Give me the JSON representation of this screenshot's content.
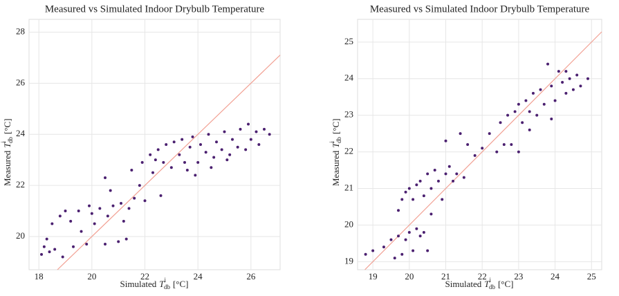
{
  "chart_data": [
    {
      "type": "scatter",
      "title": "Measured vs Simulated Indoor Drybulb Temperature",
      "x_label": [
        "Simulated",
        "T",
        "i",
        "db",
        "[°C]"
      ],
      "y_label": [
        "Measured",
        "T",
        "i",
        "db",
        "[°C]"
      ],
      "xlim": [
        17.63,
        27.1
      ],
      "ylim": [
        18.7,
        28.5
      ],
      "xticks": [
        18,
        20,
        22,
        24,
        26
      ],
      "yticks": [
        20,
        22,
        24,
        26,
        28
      ],
      "grid": true,
      "identity_line_color": "#f2a093",
      "x": [
        18.1,
        18.2,
        18.3,
        18.4,
        18.5,
        18.6,
        18.8,
        18.9,
        19.0,
        19.2,
        19.3,
        19.5,
        19.6,
        19.8,
        19.9,
        20.1,
        20.3,
        20.5,
        20.6,
        20.8,
        21.0,
        21.1,
        21.3,
        21.2,
        20.5,
        20.7,
        21.5,
        21.6,
        21.8,
        21.9,
        22.0,
        22.2,
        22.3,
        22.5,
        22.6,
        22.7,
        22.8,
        23.0,
        23.1,
        23.3,
        23.4,
        23.5,
        23.7,
        23.8,
        24.0,
        24.1,
        24.3,
        24.4,
        24.6,
        24.7,
        24.9,
        25.0,
        25.2,
        25.3,
        25.5,
        25.6,
        25.8,
        25.9,
        26.0,
        26.2,
        26.3,
        26.5,
        26.7,
        23.6,
        24.5,
        22.4,
        23.9,
        21.4,
        20.0,
        25.1
      ],
      "series": [
        {
          "color": "#4b2070",
          "values": [
            19.3,
            19.6,
            19.9,
            19.4,
            20.5,
            19.5,
            20.8,
            19.2,
            21.0,
            20.6,
            19.6,
            21.0,
            20.2,
            19.7,
            21.2,
            20.5,
            21.1,
            19.7,
            20.8,
            21.2,
            19.8,
            21.3,
            19.9,
            20.6,
            22.3,
            21.8,
            22.6,
            21.5,
            22.0,
            22.9,
            21.4,
            23.2,
            22.5,
            23.4,
            21.6,
            22.9,
            23.6,
            22.7,
            23.7,
            23.2,
            23.8,
            22.9,
            23.5,
            23.9,
            22.9,
            23.6,
            23.3,
            24.0,
            23.1,
            23.7,
            23.4,
            24.1,
            23.2,
            23.8,
            23.5,
            24.2,
            23.4,
            24.4,
            23.8,
            24.1,
            23.6,
            24.2,
            24.0,
            22.6,
            22.7,
            23.0,
            22.4,
            21.1,
            20.9,
            23.0
          ]
        }
      ]
    },
    {
      "type": "scatter",
      "title": "Measured vs Simulated Indoor Drybulb Temperature",
      "x_label": [
        "Simulated",
        "T",
        "i",
        "db",
        "[°C]"
      ],
      "y_label": [
        "Measured",
        "T",
        "i",
        "db",
        "[°C]"
      ],
      "xlim": [
        18.58,
        25.28
      ],
      "ylim": [
        18.78,
        25.62
      ],
      "xticks": [
        19,
        20,
        21,
        22,
        23,
        24,
        25
      ],
      "yticks": [
        19,
        20,
        21,
        22,
        23,
        24,
        25
      ],
      "grid": true,
      "identity_line_color": "#f2a093",
      "x": [
        18.8,
        19.0,
        19.3,
        19.5,
        19.6,
        19.7,
        19.8,
        19.9,
        20.0,
        20.1,
        20.2,
        20.3,
        20.4,
        20.5,
        19.7,
        19.8,
        19.9,
        20.0,
        20.1,
        20.2,
        20.3,
        20.4,
        20.5,
        20.6,
        20.7,
        20.8,
        20.9,
        21.0,
        21.1,
        21.2,
        21.3,
        21.0,
        21.4,
        21.6,
        21.8,
        22.0,
        22.2,
        22.4,
        22.5,
        22.7,
        22.8,
        22.9,
        23.0,
        23.1,
        23.2,
        23.3,
        23.4,
        23.5,
        23.6,
        23.7,
        23.8,
        23.9,
        24.0,
        24.1,
        24.2,
        24.3,
        24.4,
        24.5,
        24.6,
        24.7,
        24.9,
        23.9,
        23.3,
        22.6,
        24.3,
        23.0,
        21.5,
        20.6
      ],
      "series": [
        {
          "color": "#4b2070",
          "values": [
            19.2,
            19.3,
            19.4,
            19.6,
            19.1,
            19.7,
            19.2,
            19.6,
            19.8,
            19.3,
            19.9,
            19.7,
            19.8,
            19.3,
            20.4,
            20.7,
            20.9,
            21.0,
            20.7,
            21.1,
            21.2,
            20.8,
            21.4,
            21.0,
            21.5,
            21.2,
            20.7,
            21.4,
            21.6,
            21.2,
            21.4,
            22.3,
            22.5,
            22.2,
            21.9,
            22.1,
            22.5,
            22.0,
            22.8,
            23.0,
            22.2,
            23.1,
            23.3,
            22.8,
            23.4,
            23.1,
            23.6,
            23.0,
            23.7,
            23.3,
            24.4,
            23.8,
            23.4,
            24.2,
            23.9,
            23.6,
            24.0,
            23.7,
            24.1,
            23.8,
            24.0,
            22.9,
            22.6,
            22.2,
            24.2,
            22.0,
            21.3,
            20.3
          ]
        }
      ]
    }
  ]
}
